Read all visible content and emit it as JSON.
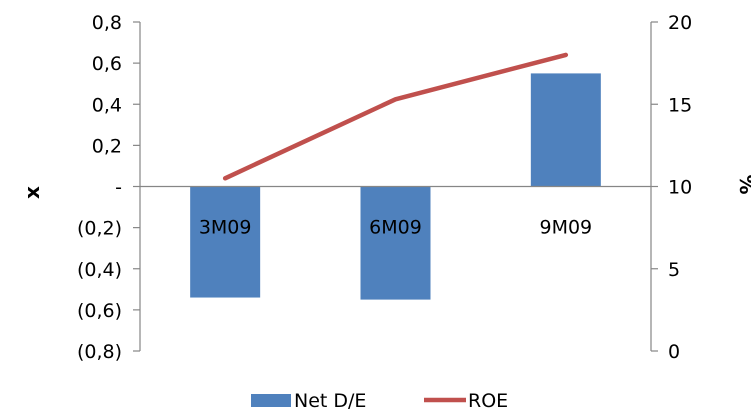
{
  "chart_data": {
    "type": "bar",
    "categories": [
      "3M09",
      "6M09",
      "9M09"
    ],
    "series": [
      {
        "name": "Net D/E",
        "type": "bar",
        "axis": "left",
        "values": [
          -0.54,
          -0.55,
          0.55
        ],
        "color": "#4F81BD"
      },
      {
        "name": "ROE",
        "type": "line",
        "axis": "right",
        "values": [
          10.5,
          15.3,
          18.0
        ],
        "color": "#C0504D"
      }
    ],
    "ylabel": "x",
    "y2label": "%",
    "ylim": [
      -0.8,
      0.8
    ],
    "y2lim": [
      0,
      20
    ],
    "yticks": [
      {
        "value": 0.8,
        "label": "0,8"
      },
      {
        "value": 0.6,
        "label": "0,6"
      },
      {
        "value": 0.4,
        "label": "0,4"
      },
      {
        "value": 0.2,
        "label": "0,2"
      },
      {
        "value": 0,
        "label": "-"
      },
      {
        "value": -0.2,
        "label": "(0,2)"
      },
      {
        "value": -0.4,
        "label": "(0,4)"
      },
      {
        "value": -0.6,
        "label": "(0,6)"
      },
      {
        "value": -0.8,
        "label": "(0,8)"
      }
    ],
    "y2ticks": [
      {
        "value": 20,
        "label": "20"
      },
      {
        "value": 15,
        "label": "15"
      },
      {
        "value": 10,
        "label": "10"
      },
      {
        "value": 5,
        "label": "5"
      },
      {
        "value": 0,
        "label": "0"
      }
    ],
    "grid": false,
    "legend": "bottom"
  }
}
